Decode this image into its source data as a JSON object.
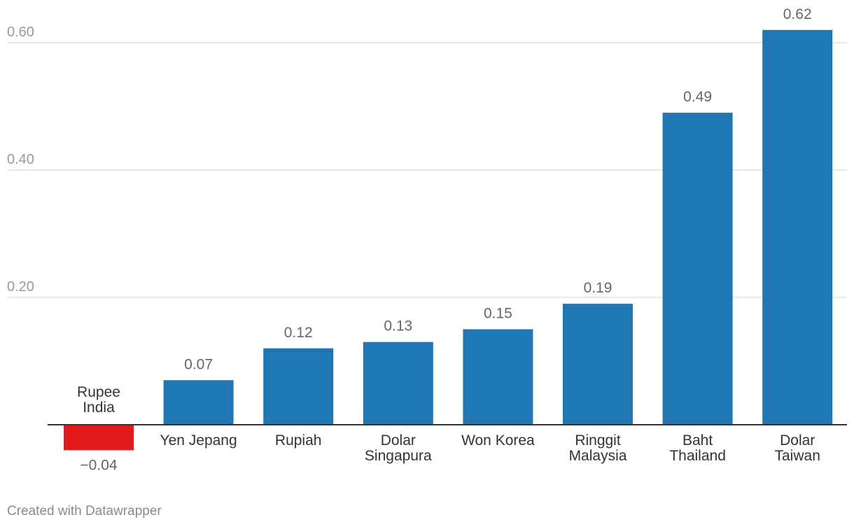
{
  "chart_data": {
    "type": "bar",
    "categories": [
      [
        "Rupee",
        "India"
      ],
      [
        "Yen Jepang"
      ],
      [
        "Rupiah"
      ],
      [
        "Dolar",
        "Singapura"
      ],
      [
        "Won Korea"
      ],
      [
        "Ringgit",
        "Malaysia"
      ],
      [
        "Baht",
        "Thailand"
      ],
      [
        "Dolar",
        "Taiwan"
      ]
    ],
    "values": [
      -0.04,
      0.07,
      0.12,
      0.13,
      0.15,
      0.19,
      0.49,
      0.62
    ],
    "value_labels": [
      "−0.04",
      "0.07",
      "0.12",
      "0.13",
      "0.15",
      "0.19",
      "0.49",
      "0.62"
    ],
    "y_ticks": [
      0.2,
      0.4,
      0.6
    ],
    "y_tick_labels": [
      "0.20",
      "0.40",
      "0.60"
    ],
    "ylim": [
      -0.04,
      0.62
    ],
    "title": "",
    "xlabel": "",
    "ylabel": "",
    "grid": true,
    "colors": {
      "positive": "#1f77b4",
      "negative": "#e31a1c",
      "grid": "#e2e2e2",
      "baseline": "#333333",
      "tick_label": "#9a9a9a",
      "value_label": "#666666",
      "category_label": "#333333"
    }
  },
  "footer": {
    "credit": "Created with Datawrapper"
  }
}
